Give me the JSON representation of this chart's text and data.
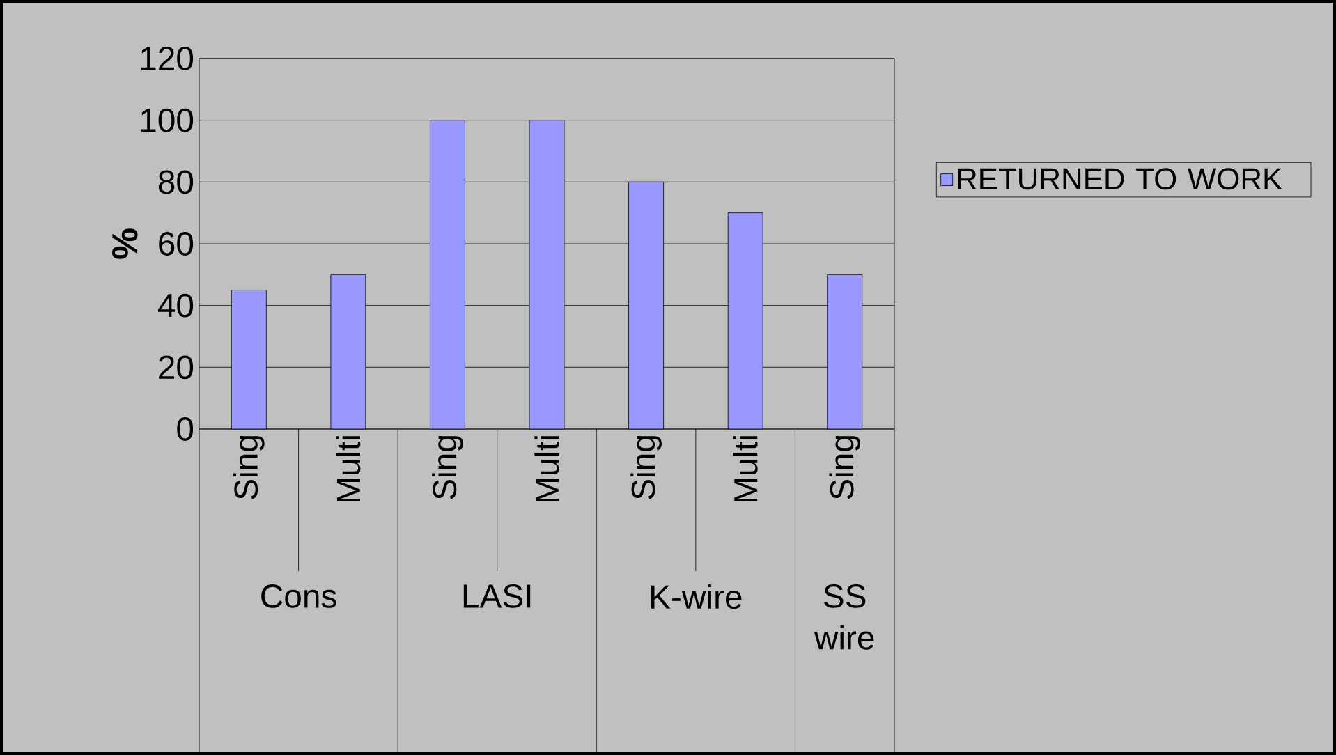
{
  "chart_data": {
    "type": "bar",
    "ylabel": "%",
    "categories": [
      "Sing",
      "Multi",
      "Sing",
      "Multi",
      "Sing",
      "Multi",
      "Sing"
    ],
    "series": [
      {
        "name": "RETURNED TO WORK",
        "color": "#9999ff",
        "values": [
          45,
          50,
          100,
          100,
          80,
          70,
          50
        ]
      }
    ],
    "annotations": [
      "Cons",
      "LASI",
      "K-wire",
      "SS wire"
    ],
    "ylim": [
      0,
      120
    ],
    "yticks": [
      0,
      20,
      40,
      60,
      80,
      100,
      120
    ],
    "grid": "y",
    "legend": "right"
  }
}
